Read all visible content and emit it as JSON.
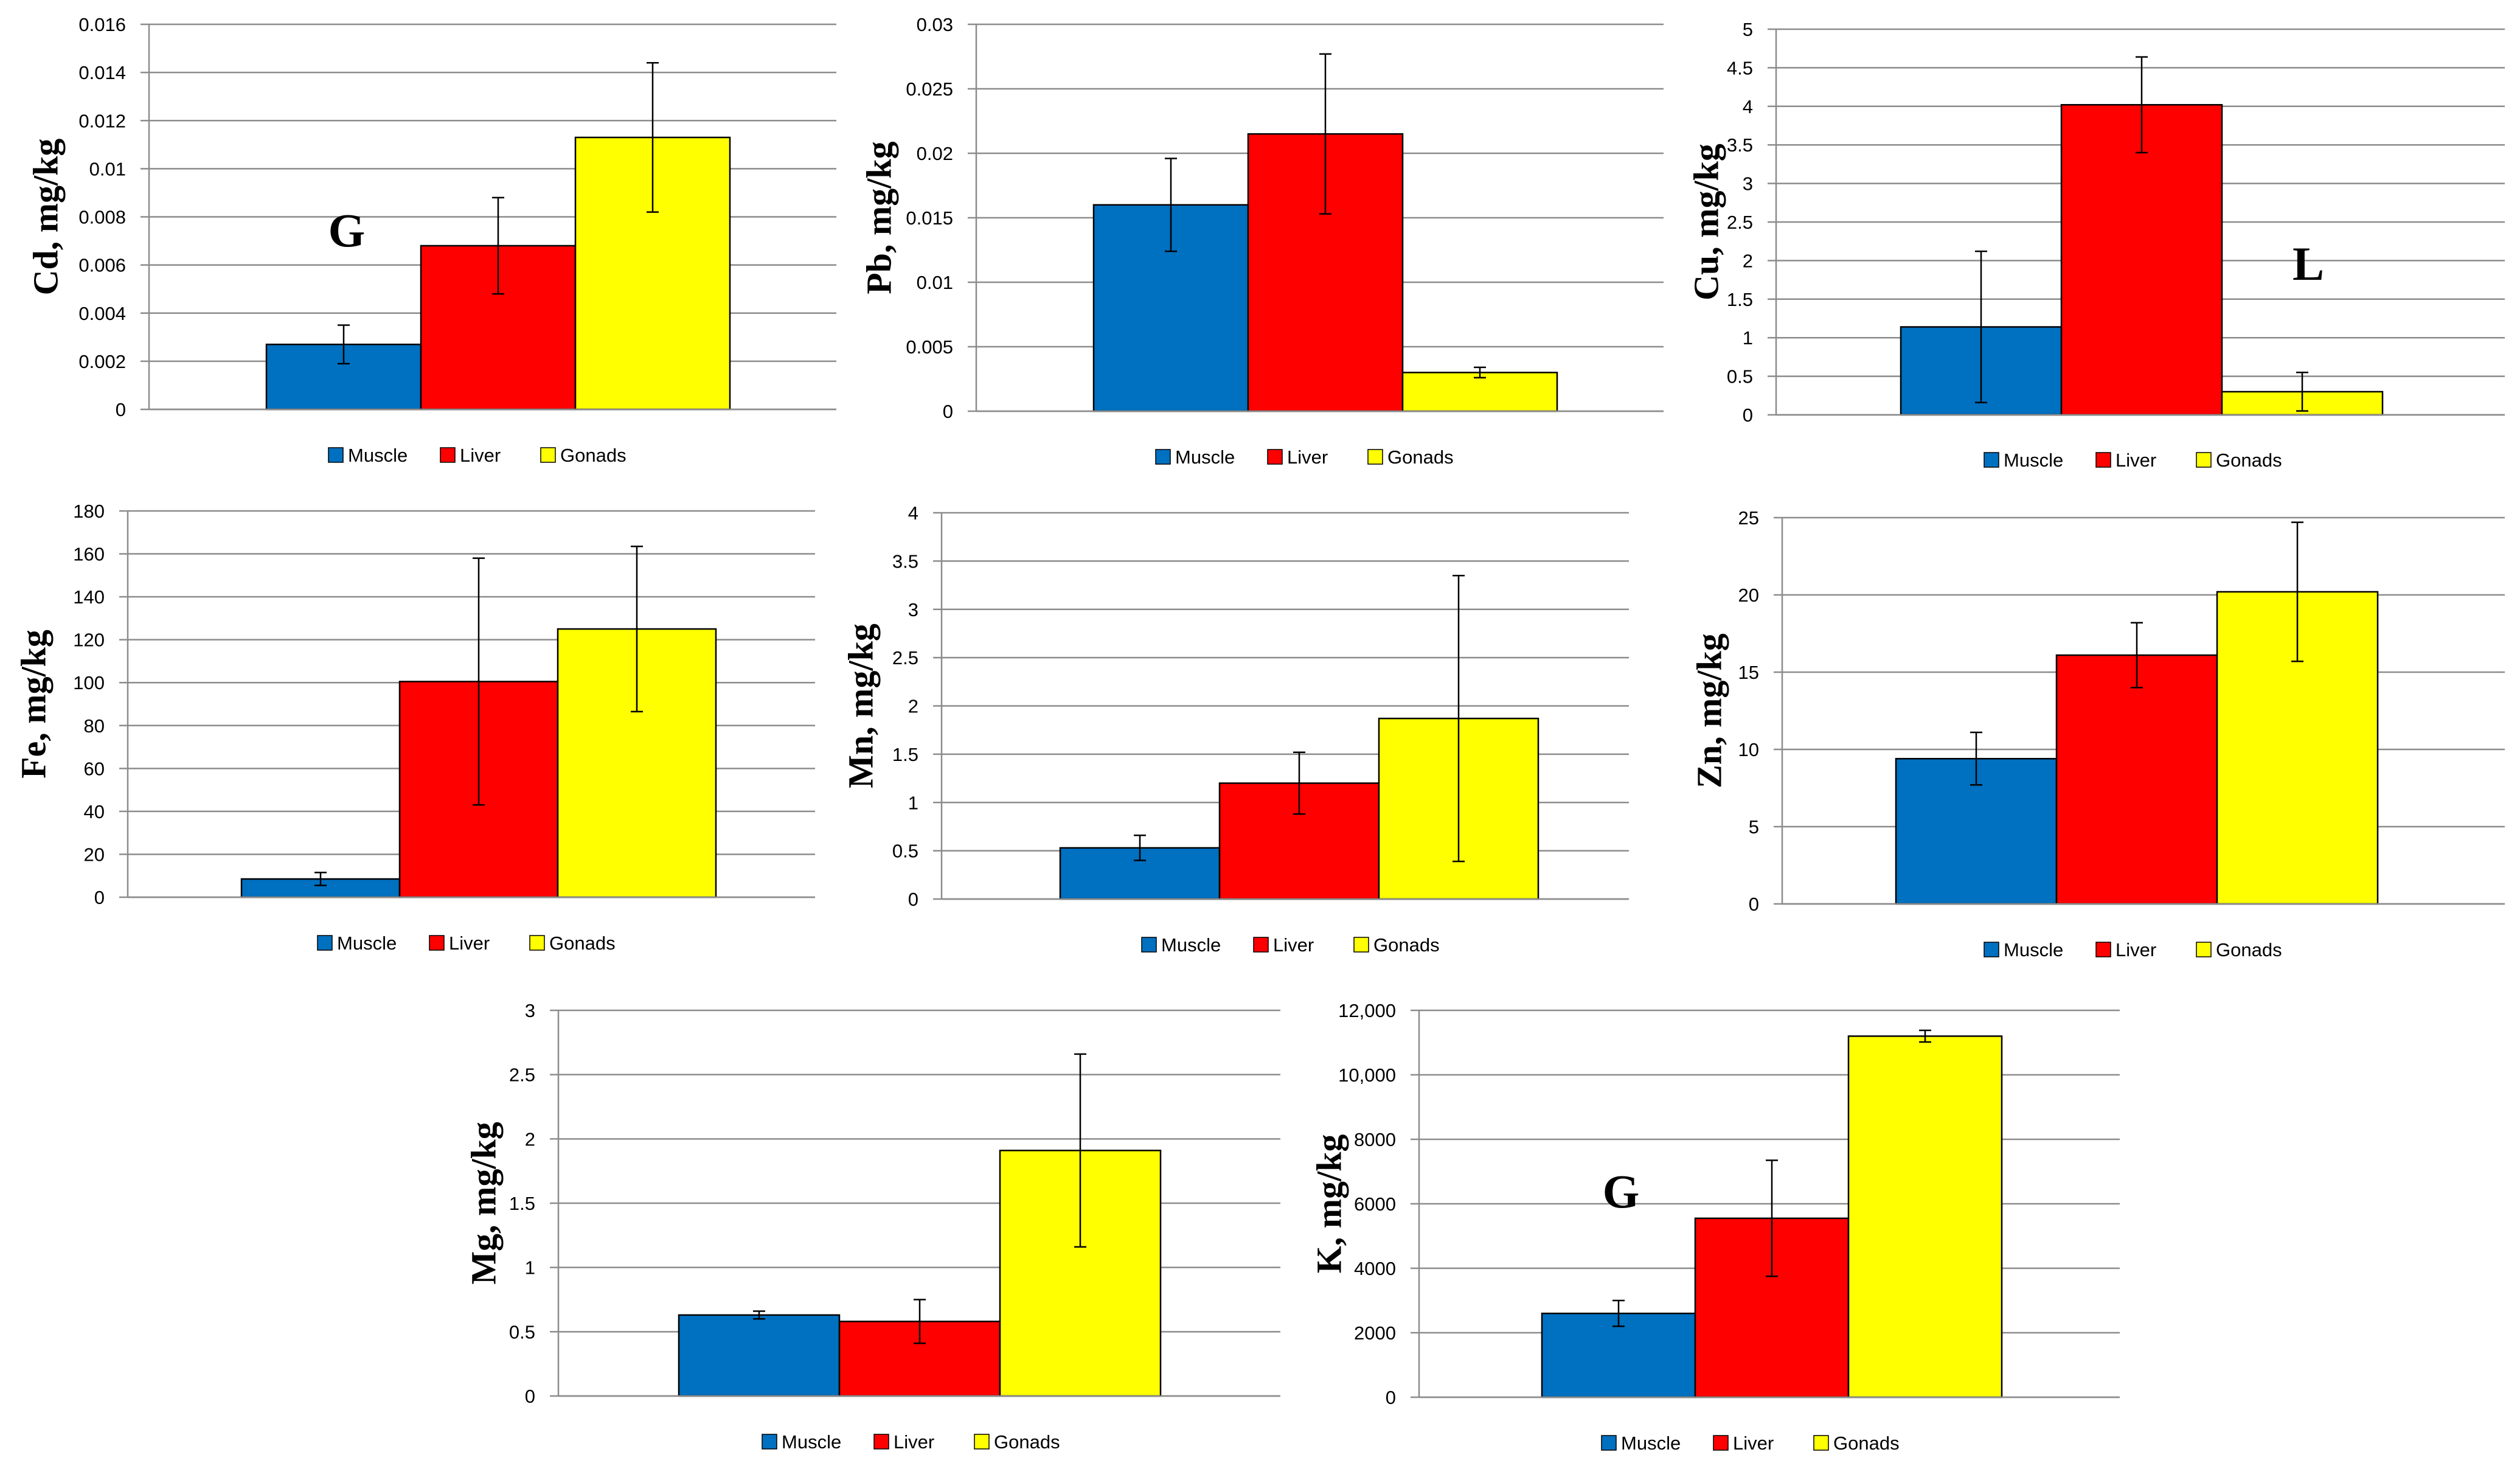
{
  "figure": {
    "series_names": [
      "Muscle",
      "Liver",
      "Gonads"
    ]
  },
  "colors": {
    "Muscle": "#0070C0",
    "Liver": "#FF0000",
    "Gonads": "#FFFF00",
    "grid": "#8c8c8c",
    "axis": "#000000",
    "text": "#000000"
  },
  "chart_data": [
    {
      "id": "cd",
      "type": "bar",
      "title": "",
      "xlabel": "",
      "ylabel": "Cd, mg/kg",
      "categories": [
        "Muscle",
        "Liver",
        "Gonads"
      ],
      "values": [
        0.0027,
        0.0068,
        0.0113
      ],
      "errors": [
        0.0008,
        0.002,
        0.0031
      ],
      "ylim": [
        0,
        0.016
      ],
      "ticks": [
        "0",
        "0.002",
        "0.004",
        "0.006",
        "0.008",
        "0.01",
        "0.012",
        "0.014",
        "0.016"
      ],
      "annotation": {
        "text": "G",
        "near": "Muscle"
      },
      "legend": [
        "Muscle",
        "Liver",
        "Gonads"
      ]
    },
    {
      "id": "pb",
      "type": "bar",
      "title": "",
      "xlabel": "",
      "ylabel": "Pb, mg/kg",
      "categories": [
        "Muscle",
        "Liver",
        "Gonads"
      ],
      "values": [
        0.016,
        0.0215,
        0.003
      ],
      "errors": [
        0.0036,
        0.0062,
        0.0004
      ],
      "ylim": [
        0,
        0.03
      ],
      "ticks": [
        "0",
        "0.005",
        "0.01",
        "0.015",
        "0.02",
        "0.025",
        "0.03"
      ],
      "legend": [
        "Muscle",
        "Liver",
        "Gonads"
      ]
    },
    {
      "id": "cu",
      "type": "bar",
      "title": "",
      "xlabel": "",
      "ylabel": "Cu, mg/kg",
      "categories": [
        "Muscle",
        "Liver",
        "Gonads"
      ],
      "values": [
        1.14,
        4.02,
        0.3
      ],
      "errors": [
        0.98,
        0.62,
        0.25
      ],
      "ylim": [
        0,
        5
      ],
      "ticks": [
        "0",
        "0.5",
        "1",
        "1.5",
        "2",
        "2.5",
        "3",
        "3.5",
        "4",
        "4.5",
        "5"
      ],
      "annotation": {
        "text": "L",
        "near": "Gonads"
      },
      "legend": [
        "Muscle",
        "Liver",
        "Gonads"
      ]
    },
    {
      "id": "fe",
      "type": "bar",
      "title": "",
      "xlabel": "",
      "ylabel": "Fe, mg/kg",
      "categories": [
        "Muscle",
        "Liver",
        "Gonads"
      ],
      "values": [
        8.5,
        100.5,
        125
      ],
      "errors": [
        3,
        57.5,
        38.5
      ],
      "ylim": [
        0,
        180
      ],
      "ticks": [
        "0",
        "20",
        "40",
        "60",
        "80",
        "100",
        "120",
        "140",
        "160",
        "180"
      ],
      "legend": [
        "Muscle",
        "Liver",
        "Gonads"
      ]
    },
    {
      "id": "mn",
      "type": "bar",
      "title": "",
      "xlabel": "",
      "ylabel": "Mn, mg/kg",
      "categories": [
        "Muscle",
        "Liver",
        "Gonads"
      ],
      "values": [
        0.53,
        1.2,
        1.87
      ],
      "errors": [
        0.13,
        0.32,
        1.48
      ],
      "ylim": [
        0,
        4
      ],
      "ticks": [
        "0",
        "0.5",
        "1",
        "1.5",
        "2",
        "2.5",
        "3",
        "3.5",
        "4"
      ],
      "legend": [
        "Muscle",
        "Liver",
        "Gonads"
      ]
    },
    {
      "id": "zn",
      "type": "bar",
      "title": "",
      "xlabel": "",
      "ylabel": "Zn, mg/kg",
      "categories": [
        "Muscle",
        "Liver",
        "Gonads"
      ],
      "values": [
        9.4,
        16.1,
        20.2
      ],
      "errors": [
        1.7,
        2.1,
        4.5
      ],
      "ylim": [
        0,
        25
      ],
      "ticks": [
        "0",
        "5",
        "10",
        "15",
        "20",
        "25"
      ],
      "legend": [
        "Muscle",
        "Liver",
        "Gonads"
      ]
    },
    {
      "id": "mg",
      "type": "bar",
      "title": "",
      "xlabel": "",
      "ylabel": "Mg, mg/kg",
      "categories": [
        "Muscle",
        "Liver",
        "Gonads"
      ],
      "values": [
        0.63,
        0.58,
        1.91
      ],
      "errors": [
        0.03,
        0.17,
        0.75
      ],
      "ylim": [
        0,
        3
      ],
      "ticks": [
        "0",
        "0.5",
        "1",
        "1.5",
        "2",
        "2.5",
        "3"
      ],
      "legend": [
        "Muscle",
        "Liver",
        "Gonads"
      ]
    },
    {
      "id": "k",
      "type": "bar",
      "title": "",
      "xlabel": "",
      "ylabel": "K, mg/kg",
      "categories": [
        "Muscle",
        "Liver",
        "Gonads"
      ],
      "values": [
        2600,
        5550,
        11200
      ],
      "errors": [
        400,
        1800,
        180
      ],
      "ylim": [
        0,
        12000
      ],
      "ticks": [
        "0",
        "2000",
        "4000",
        "6000",
        "8000",
        "10,000",
        "12,000"
      ],
      "annotation": {
        "text": "G",
        "near": "Muscle"
      },
      "legend": [
        "Muscle",
        "Liver",
        "Gonads"
      ]
    }
  ]
}
